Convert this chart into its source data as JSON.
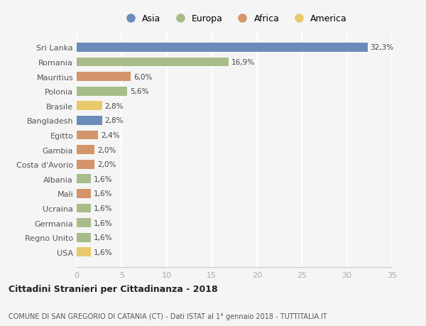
{
  "categories": [
    "Sri Lanka",
    "Romania",
    "Mauritius",
    "Polonia",
    "Brasile",
    "Bangladesh",
    "Egitto",
    "Gambia",
    "Costa d'Avorio",
    "Albania",
    "Mali",
    "Ucraina",
    "Germania",
    "Regno Unito",
    "USA"
  ],
  "values": [
    32.3,
    16.9,
    6.0,
    5.6,
    2.8,
    2.8,
    2.4,
    2.0,
    2.0,
    1.6,
    1.6,
    1.6,
    1.6,
    1.6,
    1.6
  ],
  "labels": [
    "32,3%",
    "16,9%",
    "6,0%",
    "5,6%",
    "2,8%",
    "2,8%",
    "2,4%",
    "2,0%",
    "2,0%",
    "1,6%",
    "1,6%",
    "1,6%",
    "1,6%",
    "1,6%",
    "1,6%"
  ],
  "continents": [
    "Asia",
    "Europa",
    "Africa",
    "Europa",
    "America",
    "Asia",
    "Africa",
    "Africa",
    "Africa",
    "Europa",
    "Africa",
    "Europa",
    "Europa",
    "Europa",
    "America"
  ],
  "colors": {
    "Asia": "#6b8cba",
    "Europa": "#a8bc8a",
    "Africa": "#d4956a",
    "America": "#e8c96b"
  },
  "legend_order": [
    "Asia",
    "Europa",
    "Africa",
    "America"
  ],
  "title1": "Cittadini Stranieri per Cittadinanza - 2018",
  "title2": "COMUNE DI SAN GREGORIO DI CATANIA (CT) - Dati ISTAT al 1° gennaio 2018 - TUTTITALIA.IT",
  "xlim": [
    0,
    35
  ],
  "xticks": [
    0,
    5,
    10,
    15,
    20,
    25,
    30,
    35
  ],
  "background_color": "#f5f5f5",
  "grid_color": "#ffffff"
}
